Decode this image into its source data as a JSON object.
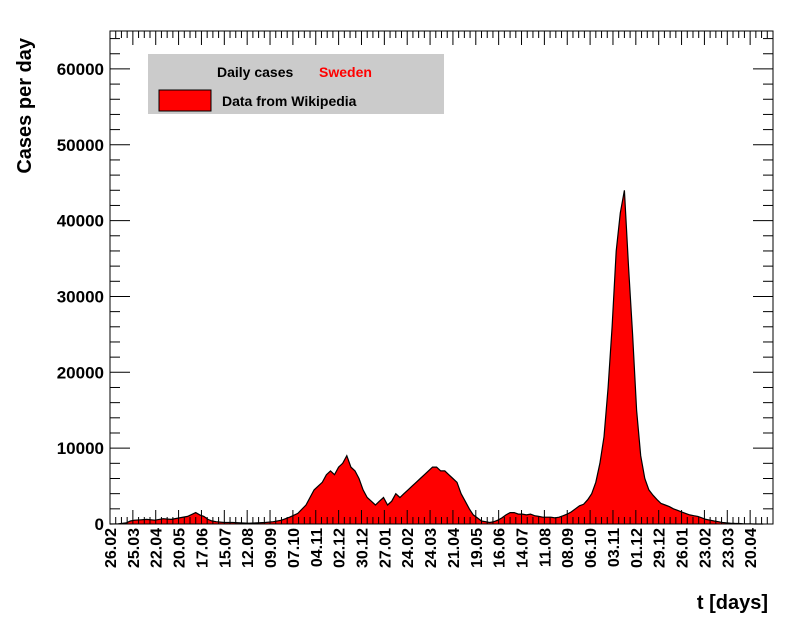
{
  "chart_data": {
    "type": "area",
    "title": "",
    "xlabel": "t [days]",
    "ylabel": "Cases per day",
    "ylim": [
      0,
      65000
    ],
    "yticks": [
      0,
      10000,
      20000,
      30000,
      40000,
      50000,
      60000
    ],
    "ytick_labels": [
      "0",
      "10000",
      "20000",
      "30000",
      "40000",
      "50000",
      "60000"
    ],
    "xlim_days": [
      0,
      812
    ],
    "xtick_labels": [
      "26.02",
      "25.03",
      "22.04",
      "20.05",
      "17.06",
      "15.07",
      "12.08",
      "09.09",
      "07.10",
      "04.11",
      "02.12",
      "30.12",
      "27.01",
      "24.02",
      "24.03",
      "21.04",
      "19.05",
      "16.06",
      "14.07",
      "11.08",
      "08.09",
      "06.10",
      "03.11",
      "01.12",
      "29.12",
      "26.01",
      "23.02",
      "23.03",
      "20.04"
    ],
    "xtick_spacing_days": 28,
    "grid": false,
    "fill_color": "#ff0000",
    "line_color": "#000000",
    "legend": {
      "position": "top-left",
      "title": "Daily cases",
      "country": "Sweden",
      "country_color": "#ff0000",
      "entry_label": "Data from Wikipedia"
    },
    "series": [
      {
        "x_days": [
          0,
          10,
          20,
          25,
          30,
          38,
          45,
          55,
          65,
          75,
          85,
          95,
          105,
          110,
          115,
          120,
          125,
          130,
          140,
          150,
          160,
          170,
          180,
          190,
          200,
          210,
          220,
          230,
          240,
          245,
          250,
          255,
          260,
          265,
          270,
          275,
          280,
          285,
          290,
          295,
          300,
          305,
          310,
          315,
          320,
          325,
          330,
          335,
          340,
          345,
          350,
          355,
          360,
          365,
          370,
          375,
          380,
          385,
          390,
          395,
          400,
          405,
          410,
          415,
          420,
          425,
          430,
          435,
          440,
          445,
          450,
          455,
          460,
          465,
          470,
          475,
          480,
          485,
          490,
          495,
          500,
          505,
          510,
          515,
          520,
          525,
          530,
          535,
          540,
          545,
          550,
          555,
          560,
          565,
          570,
          575,
          580,
          585,
          590,
          595,
          600,
          605,
          610,
          615,
          620,
          625,
          630,
          635,
          640,
          645,
          650,
          655,
          660,
          665,
          670,
          675,
          680,
          685,
          690,
          695,
          700,
          705,
          710,
          715,
          720,
          725,
          730,
          735,
          740,
          745,
          750,
          755,
          760,
          765,
          770,
          775,
          780,
          785,
          790,
          795,
          800
        ],
        "values": [
          0,
          20,
          150,
          400,
          500,
          550,
          600,
          500,
          700,
          600,
          800,
          1000,
          1500,
          1200,
          1000,
          600,
          400,
          300,
          200,
          200,
          150,
          100,
          150,
          200,
          300,
          500,
          900,
          1400,
          2500,
          3500,
          4500,
          5000,
          5500,
          6500,
          7000,
          6500,
          7500,
          8000,
          9000,
          7500,
          7000,
          6000,
          4500,
          3500,
          3000,
          2500,
          3000,
          3500,
          2500,
          3000,
          4000,
          3500,
          4000,
          4500,
          5000,
          5500,
          6000,
          6500,
          7000,
          7500,
          7500,
          7000,
          7000,
          6500,
          6000,
          5500,
          4000,
          3000,
          2000,
          1200,
          800,
          400,
          300,
          200,
          300,
          500,
          800,
          1200,
          1500,
          1500,
          1300,
          1300,
          1200,
          1300,
          1100,
          1000,
          900,
          900,
          900,
          800,
          900,
          1100,
          1300,
          1600,
          2000,
          2400,
          2600,
          3200,
          4000,
          5500,
          8000,
          11500,
          18000,
          26000,
          36000,
          41000,
          44000,
          34000,
          25000,
          15000,
          9000,
          6000,
          4500,
          3800,
          3200,
          2700,
          2500,
          2300,
          2000,
          1800,
          1600,
          1400,
          1200,
          1100,
          1000,
          800,
          600,
          500,
          400,
          300,
          200,
          150,
          100,
          80,
          60,
          40,
          20,
          10,
          5,
          0,
          0
        ]
      }
    ]
  }
}
